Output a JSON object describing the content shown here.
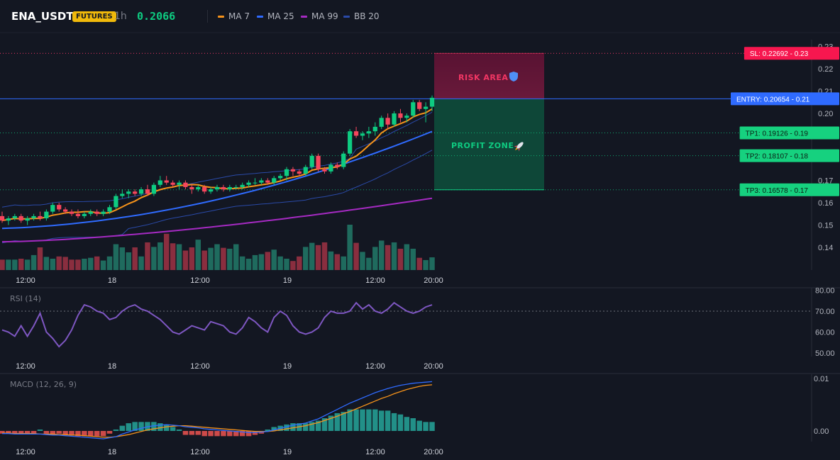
{
  "header": {
    "symbol": "ENA_USDT",
    "badge": "FUTURES",
    "interval": "1h",
    "last_price": "0.2066",
    "indicators": [
      {
        "label": "MA 7",
        "color": "#f7931a"
      },
      {
        "label": "MA 25",
        "color": "#2f6bff"
      },
      {
        "label": "MA 99",
        "color": "#a52ac2"
      },
      {
        "label": "BB 20",
        "color": "#2a4aa8"
      }
    ]
  },
  "trade": {
    "risk_label": "RISK AREA",
    "profit_label": "PROFIT ZONE",
    "risk_icon": "shield-icon",
    "profit_icon": "rocket-icon",
    "sl": {
      "tag": "SL: 0.22692",
      "axis": "0.23",
      "value": 0.22692,
      "color": "#f23664"
    },
    "entry": {
      "tag": "ENTRY: 0.20654",
      "axis": "0.21",
      "value": 0.20654,
      "color": "#2f6bff"
    },
    "tps": [
      {
        "tag": "TP1: 0.19126",
        "axis": "0.19",
        "value": 0.19126
      },
      {
        "tag": "TP2: 0.18107",
        "axis": "0.18",
        "value": 0.18107
      },
      {
        "tag": "TP3: 0.16578",
        "axis": "0.17",
        "value": 0.16578
      }
    ],
    "tp_color": "#0ecb81"
  },
  "time_axis": [
    "12:00",
    "18",
    "12:00",
    "19",
    "12:00",
    "20:00"
  ],
  "price_axis": [
    "0.23",
    "0.22",
    "0.21",
    "0.20",
    "0.17",
    "0.16",
    "0.15",
    "0.14"
  ],
  "panes": {
    "rsi": {
      "title": "RSI (14)",
      "axis": [
        "80.00",
        "70.00",
        "60.00",
        "50.00"
      ],
      "overbought": 70,
      "color": "#7e57c2"
    },
    "macd": {
      "title": "MACD (12, 26, 9)",
      "axis": [
        "0.01",
        "0.00"
      ],
      "macd_color": "#2f6bff",
      "signal_color": "#f7931a"
    }
  },
  "chart_data": [
    {
      "type": "candlestick",
      "title": "ENA_USDT 1h",
      "x_ticks": [
        "12:00",
        "18",
        "12:00",
        "19",
        "12:00",
        "20:00"
      ],
      "ylim": [
        0.13,
        0.23
      ],
      "ohlc": [
        [
          0.154,
          0.156,
          0.151,
          0.152
        ],
        [
          0.152,
          0.154,
          0.15,
          0.153
        ],
        [
          0.153,
          0.155,
          0.152,
          0.154
        ],
        [
          0.154,
          0.155,
          0.151,
          0.152
        ],
        [
          0.152,
          0.154,
          0.15,
          0.153
        ],
        [
          0.153,
          0.155,
          0.152,
          0.154
        ],
        [
          0.154,
          0.156,
          0.152,
          0.153
        ],
        [
          0.153,
          0.157,
          0.152,
          0.156
        ],
        [
          0.156,
          0.16,
          0.155,
          0.159
        ],
        [
          0.159,
          0.16,
          0.156,
          0.157
        ],
        [
          0.157,
          0.158,
          0.155,
          0.156
        ],
        [
          0.156,
          0.157,
          0.154,
          0.155
        ],
        [
          0.155,
          0.157,
          0.153,
          0.154
        ],
        [
          0.154,
          0.156,
          0.153,
          0.155
        ],
        [
          0.155,
          0.157,
          0.154,
          0.156
        ],
        [
          0.156,
          0.157,
          0.154,
          0.155
        ],
        [
          0.155,
          0.157,
          0.154,
          0.156
        ],
        [
          0.156,
          0.159,
          0.155,
          0.158
        ],
        [
          0.158,
          0.164,
          0.157,
          0.163
        ],
        [
          0.163,
          0.166,
          0.162,
          0.164
        ],
        [
          0.164,
          0.166,
          0.162,
          0.165
        ],
        [
          0.165,
          0.166,
          0.163,
          0.164
        ],
        [
          0.164,
          0.167,
          0.163,
          0.166
        ],
        [
          0.166,
          0.168,
          0.163,
          0.164
        ],
        [
          0.164,
          0.169,
          0.163,
          0.168
        ],
        [
          0.168,
          0.172,
          0.167,
          0.17
        ],
        [
          0.17,
          0.172,
          0.168,
          0.169
        ],
        [
          0.169,
          0.17,
          0.167,
          0.168
        ],
        [
          0.168,
          0.17,
          0.166,
          0.169
        ],
        [
          0.169,
          0.17,
          0.166,
          0.167
        ],
        [
          0.167,
          0.168,
          0.164,
          0.166
        ],
        [
          0.166,
          0.168,
          0.165,
          0.167
        ],
        [
          0.167,
          0.168,
          0.164,
          0.165
        ],
        [
          0.165,
          0.167,
          0.164,
          0.166
        ],
        [
          0.166,
          0.168,
          0.165,
          0.167
        ],
        [
          0.167,
          0.168,
          0.165,
          0.166
        ],
        [
          0.166,
          0.168,
          0.165,
          0.167
        ],
        [
          0.167,
          0.168,
          0.166,
          0.167
        ],
        [
          0.167,
          0.169,
          0.166,
          0.168
        ],
        [
          0.168,
          0.17,
          0.167,
          0.169
        ],
        [
          0.169,
          0.171,
          0.168,
          0.169
        ],
        [
          0.169,
          0.171,
          0.168,
          0.17
        ],
        [
          0.17,
          0.171,
          0.168,
          0.169
        ],
        [
          0.169,
          0.172,
          0.168,
          0.171
        ],
        [
          0.171,
          0.173,
          0.17,
          0.172
        ],
        [
          0.172,
          0.176,
          0.17,
          0.175
        ],
        [
          0.175,
          0.176,
          0.172,
          0.174
        ],
        [
          0.174,
          0.175,
          0.172,
          0.173
        ],
        [
          0.173,
          0.177,
          0.172,
          0.176
        ],
        [
          0.176,
          0.182,
          0.175,
          0.181
        ],
        [
          0.181,
          0.182,
          0.174,
          0.175
        ],
        [
          0.175,
          0.176,
          0.173,
          0.174
        ],
        [
          0.174,
          0.178,
          0.173,
          0.177
        ],
        [
          0.177,
          0.178,
          0.175,
          0.176
        ],
        [
          0.176,
          0.183,
          0.175,
          0.182
        ],
        [
          0.182,
          0.193,
          0.181,
          0.192
        ],
        [
          0.192,
          0.194,
          0.189,
          0.19
        ],
        [
          0.19,
          0.192,
          0.188,
          0.191
        ],
        [
          0.191,
          0.194,
          0.189,
          0.192
        ],
        [
          0.192,
          0.196,
          0.19,
          0.194
        ],
        [
          0.194,
          0.199,
          0.193,
          0.198
        ],
        [
          0.198,
          0.2,
          0.193,
          0.195
        ],
        [
          0.195,
          0.201,
          0.194,
          0.2
        ],
        [
          0.2,
          0.202,
          0.196,
          0.198
        ],
        [
          0.198,
          0.2,
          0.196,
          0.199
        ],
        [
          0.199,
          0.206,
          0.198,
          0.205
        ],
        [
          0.205,
          0.206,
          0.201,
          0.202
        ],
        [
          0.202,
          0.205,
          0.196,
          0.203
        ],
        [
          0.203,
          0.208,
          0.201,
          0.207
        ]
      ],
      "volume_relative": [
        0.23,
        0.23,
        0.23,
        0.25,
        0.23,
        0.33,
        0.5,
        0.29,
        0.25,
        0.3,
        0.29,
        0.23,
        0.23,
        0.25,
        0.27,
        0.3,
        0.21,
        0.3,
        0.57,
        0.5,
        0.39,
        0.5,
        0.3,
        0.61,
        0.51,
        0.61,
        0.8,
        0.59,
        0.57,
        0.43,
        0.5,
        0.67,
        0.43,
        0.49,
        0.57,
        0.49,
        0.47,
        0.57,
        0.3,
        0.25,
        0.33,
        0.35,
        0.4,
        0.45,
        0.3,
        0.25,
        0.2,
        0.3,
        0.51,
        0.6,
        0.55,
        0.61,
        0.41,
        0.35,
        0.3,
        1.0,
        0.6,
        0.4,
        0.27,
        0.51,
        0.65,
        0.55,
        0.61,
        0.47,
        0.57,
        0.47,
        0.27,
        0.22,
        0.28
      ]
    },
    {
      "type": "line",
      "name": "RSI (14)",
      "ylim": [
        48,
        82
      ],
      "values": [
        61,
        60,
        58,
        63,
        58,
        63,
        69,
        60,
        57,
        53,
        56,
        61,
        68,
        73,
        72,
        70,
        69,
        66,
        67,
        70,
        72,
        73,
        71,
        70,
        68,
        66,
        63,
        60,
        59,
        61,
        63,
        62,
        61,
        65,
        64,
        63,
        60,
        59,
        62,
        67,
        65,
        62,
        60,
        67,
        70,
        68,
        63,
        60,
        59,
        60,
        62,
        67,
        70,
        69,
        69,
        70,
        74,
        71,
        73,
        70,
        69,
        71,
        74,
        72,
        70,
        69,
        70,
        72,
        73
      ]
    },
    {
      "type": "line",
      "name": "MACD (12, 26, 9)",
      "ylim": [
        -0.002,
        0.011
      ],
      "macd": [
        -0.0005,
        -0.0005,
        -0.0006,
        -0.0006,
        -0.0006,
        -0.0006,
        -0.0006,
        -0.0007,
        -0.0008,
        -0.0008,
        -0.0009,
        -0.001,
        -0.0011,
        -0.0012,
        -0.0013,
        -0.0014,
        -0.0015,
        -0.0013,
        -0.0011,
        -0.0006,
        -0.0002,
        0.0002,
        0.0005,
        0.0008,
        0.001,
        0.0011,
        0.0012,
        0.0011,
        0.001,
        0.0008,
        0.0007,
        0.0006,
        0.0004,
        0.0003,
        0.0002,
        0.0001,
        0.0,
        -0.0001,
        -0.0002,
        -0.0003,
        -0.0003,
        -0.0002,
        -0.0001,
        0.0002,
        0.0005,
        0.0008,
        0.0011,
        0.0013,
        0.0015,
        0.0019,
        0.0023,
        0.0029,
        0.0035,
        0.0041,
        0.0047,
        0.0053,
        0.0058,
        0.0063,
        0.0068,
        0.0073,
        0.0077,
        0.0081,
        0.0084,
        0.0087,
        0.0089,
        0.0091,
        0.0092,
        0.0093,
        0.0094
      ],
      "signal": [
        -0.0004,
        -0.0004,
        -0.0005,
        -0.0005,
        -0.0005,
        -0.0005,
        -0.0006,
        -0.0006,
        -0.0006,
        -0.0007,
        -0.0007,
        -0.0008,
        -0.0008,
        -0.0009,
        -0.001,
        -0.0011,
        -0.0012,
        -0.0012,
        -0.0011,
        -0.0009,
        -0.0007,
        -0.0004,
        -0.0001,
        0.0002,
        0.0004,
        0.0006,
        0.0008,
        0.0009,
        0.001,
        0.001,
        0.0009,
        0.0008,
        0.0007,
        0.0006,
        0.0005,
        0.0004,
        0.0003,
        0.0002,
        0.0001,
        0.0,
        -0.0001,
        -0.0001,
        -0.0001,
        0.0,
        0.0002,
        0.0004,
        0.0006,
        0.0008,
        0.001,
        0.0013,
        0.0016,
        0.002,
        0.0024,
        0.0028,
        0.0033,
        0.0037,
        0.0042,
        0.0047,
        0.0052,
        0.0057,
        0.0062,
        0.0066,
        0.0071,
        0.0075,
        0.0079,
        0.0082,
        0.0085,
        0.0087,
        0.0088
      ]
    }
  ]
}
